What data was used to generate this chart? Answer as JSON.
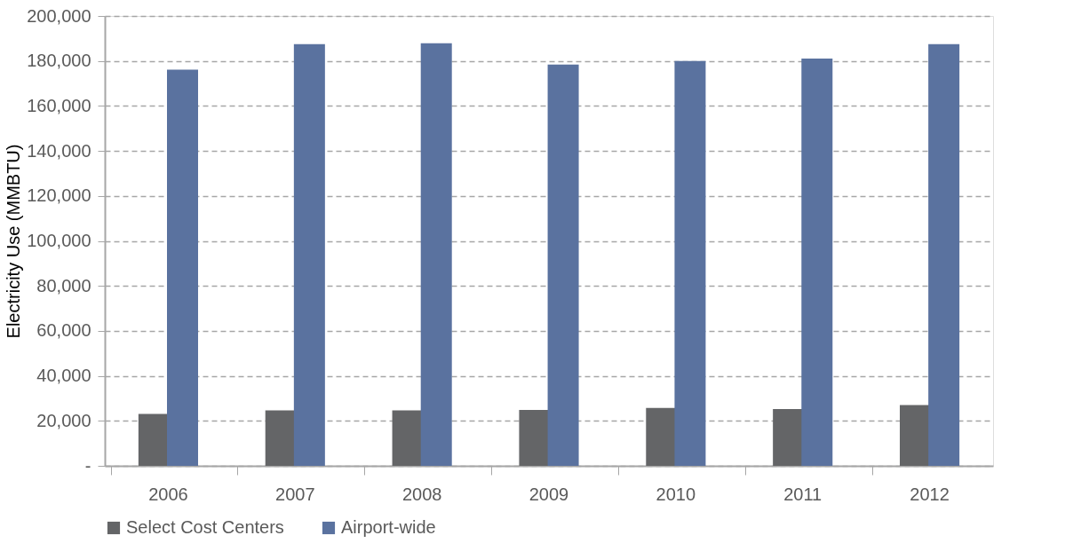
{
  "chart_data": {
    "type": "bar",
    "ylabel": "Electricity Use (MMBTU)",
    "categories": [
      "2006",
      "2007",
      "2008",
      "2009",
      "2010",
      "2011",
      "2012"
    ],
    "series": [
      {
        "name": "Select Cost Centers",
        "color": "#646567",
        "values": [
          23100,
          24700,
          24700,
          24900,
          25700,
          25200,
          27000
        ]
      },
      {
        "name": "Airport-wide",
        "color": "#5a729f",
        "values": [
          176100,
          187500,
          187900,
          178400,
          180000,
          181100,
          187500
        ]
      }
    ],
    "ylim": [
      0,
      200000
    ],
    "yticks": [
      {
        "value": 0,
        "label": "-"
      },
      {
        "value": 20000,
        "label": "20,000"
      },
      {
        "value": 40000,
        "label": "40,000"
      },
      {
        "value": 60000,
        "label": "60,000"
      },
      {
        "value": 80000,
        "label": "80,000"
      },
      {
        "value": 100000,
        "label": "100,000"
      },
      {
        "value": 120000,
        "label": "120,000"
      },
      {
        "value": 140000,
        "label": "140,000"
      },
      {
        "value": 160000,
        "label": "160,000"
      },
      {
        "value": 180000,
        "label": "180,000"
      },
      {
        "value": 200000,
        "label": "200,000"
      }
    ],
    "grid": "y",
    "legend": "bottom"
  }
}
